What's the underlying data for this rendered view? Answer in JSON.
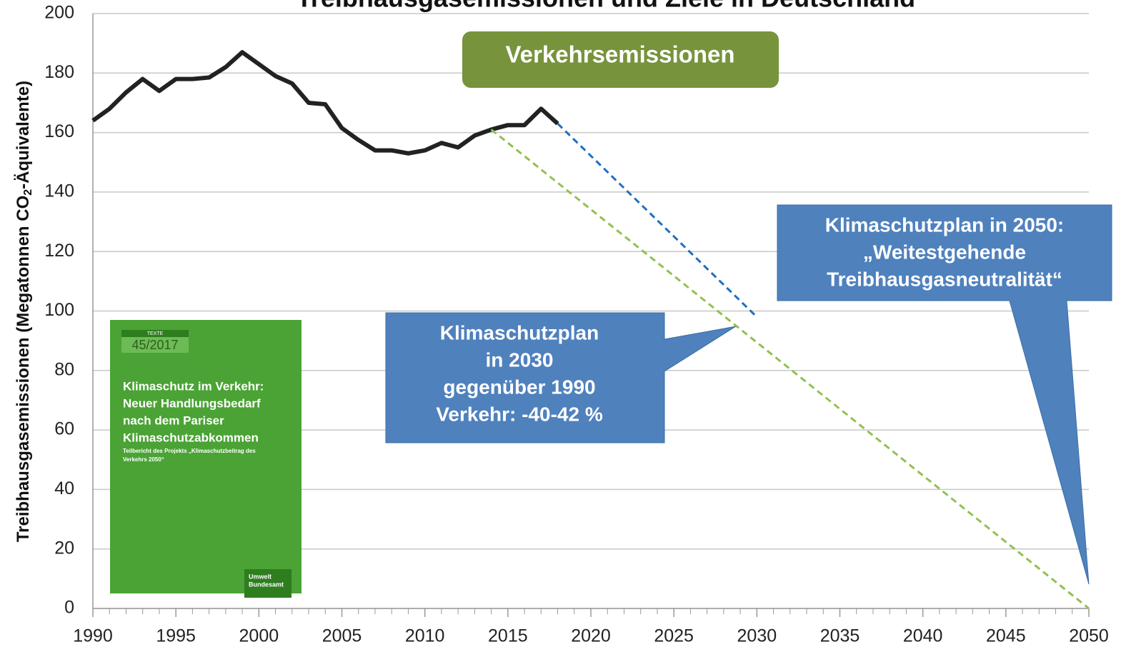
{
  "chart_data": {
    "type": "line",
    "title": "Treibhausgasemissionen und Ziele in Deutschland",
    "y_label": [
      "Treibhausgasemissionen (Megatonnen CO",
      "2",
      "-Äquivalente)"
    ],
    "xlim": [
      1990,
      2050
    ],
    "xticks": [
      1990,
      1995,
      2000,
      2005,
      2010,
      2015,
      2020,
      2025,
      2030,
      2035,
      2040,
      2045,
      2050
    ],
    "ylim": [
      0,
      200
    ],
    "yticks": [
      0,
      20,
      40,
      60,
      80,
      100,
      120,
      140,
      160,
      180,
      200
    ],
    "grid": true,
    "series": [
      {
        "color": "#222222",
        "dash": false,
        "x": [
          1990,
          1991,
          1992,
          1993,
          1994,
          1995,
          1996,
          1997,
          1998,
          1999,
          2000,
          2001,
          2002,
          2003,
          2004,
          2005,
          2006,
          2007,
          2008,
          2009,
          2010,
          2011,
          2012,
          2013,
          2014,
          2015,
          2016,
          2017,
          2018
        ],
        "values": [
          164,
          168,
          173.5,
          178,
          174,
          178,
          178,
          178.5,
          182,
          187,
          183,
          179,
          176.5,
          170,
          169.5,
          161.5,
          157.5,
          154,
          154,
          153,
          154,
          156.5,
          155,
          159,
          161,
          162.5,
          162.5,
          168,
          163
        ]
      },
      {
        "color": "#1f6fc0",
        "dash": true,
        "x": [
          2018,
          2030
        ],
        "values": [
          163,
          98
        ]
      },
      {
        "color": "#92c050",
        "dash": true,
        "x": [
          2014,
          2050
        ],
        "values": [
          161,
          0
        ]
      }
    ],
    "annotations": {
      "verkehr": "Verkehrsemissionen",
      "plan2030": [
        "Klimaschutzplan",
        "in 2030",
        "gegenüber 1990",
        "Verkehr: -40-42 %"
      ],
      "plan2050": [
        "Klimaschutzplan in 2050:",
        "„Weitestgehende",
        "Treibhausgasneutralität“"
      ],
      "report": {
        "series": "TEXTE",
        "number": "45/2017",
        "title": [
          "Klimaschutz im Verkehr:",
          "Neuer Handlungsbedarf",
          "nach dem Pariser",
          "Klimaschutzabkommen"
        ],
        "subtitle": [
          "Teilbericht des Projekts „Klimaschutzbeitrag des",
          "Verkehrs 2050“"
        ],
        "publisher": [
          "Umwelt",
          "Bundesamt"
        ]
      }
    }
  }
}
